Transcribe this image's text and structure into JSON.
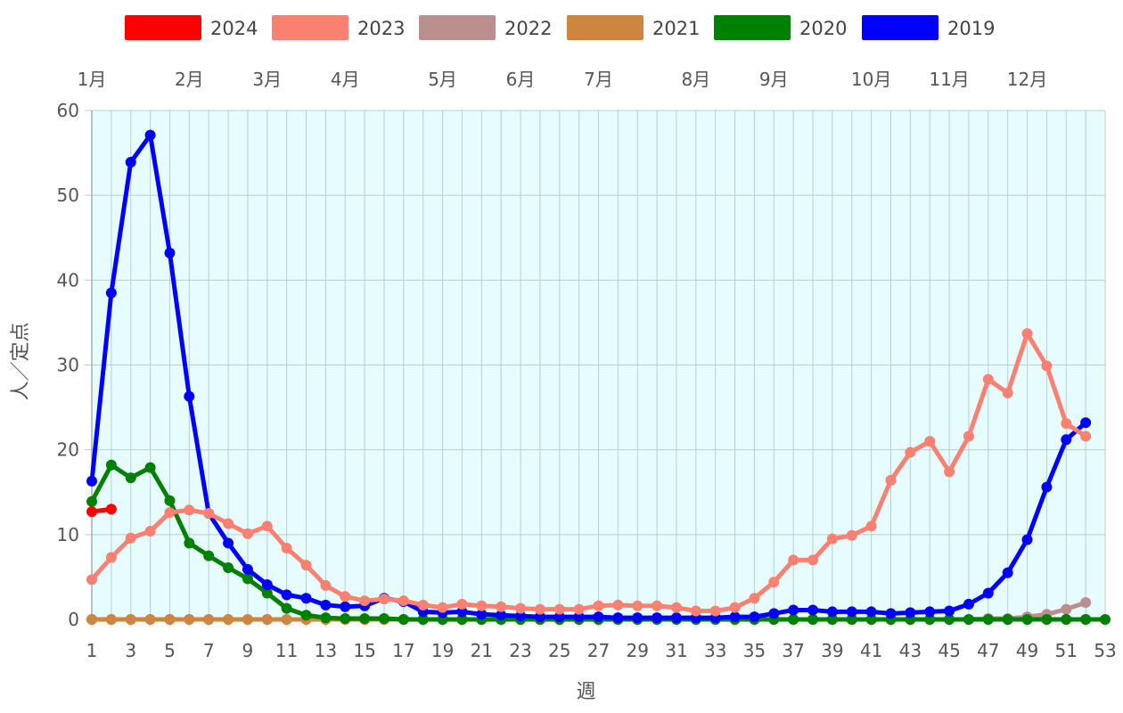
{
  "chart_data": {
    "type": "line",
    "xlabel": "週",
    "ylabel": "人／定点",
    "xlim": [
      1,
      53
    ],
    "ylim": [
      0,
      60
    ],
    "x_ticks": [
      1,
      3,
      5,
      7,
      9,
      11,
      13,
      15,
      17,
      19,
      21,
      23,
      25,
      27,
      29,
      31,
      33,
      35,
      37,
      39,
      41,
      43,
      45,
      47,
      49,
      51,
      53
    ],
    "y_ticks": [
      0,
      10,
      20,
      30,
      40,
      50,
      60
    ],
    "grid": true,
    "plot_background": "#e6fcff",
    "legend_position": "top",
    "month_labels": [
      {
        "label": "1月",
        "week": 1
      },
      {
        "label": "2月",
        "week": 6
      },
      {
        "label": "3月",
        "week": 10
      },
      {
        "label": "4月",
        "week": 14
      },
      {
        "label": "5月",
        "week": 19
      },
      {
        "label": "6月",
        "week": 23
      },
      {
        "label": "7月",
        "week": 27
      },
      {
        "label": "8月",
        "week": 32
      },
      {
        "label": "9月",
        "week": 36
      },
      {
        "label": "10月",
        "week": 41
      },
      {
        "label": "11月",
        "week": 45
      },
      {
        "label": "12月",
        "week": 49
      }
    ],
    "draw_order": [
      "2022",
      "2021",
      "2020",
      "2019",
      "2023",
      "2024"
    ],
    "series": [
      {
        "name": "2024",
        "color": "#ff0000",
        "start_week": 1,
        "values": [
          12.7,
          13.0
        ]
      },
      {
        "name": "2023",
        "color": "#fa8072",
        "start_week": 1,
        "values": [
          4.7,
          7.3,
          9.6,
          10.4,
          12.6,
          12.9,
          12.5,
          11.3,
          10.1,
          11.0,
          8.4,
          6.4,
          4.0,
          2.7,
          2.2,
          2.4,
          2.2,
          1.7,
          1.4,
          1.8,
          1.6,
          1.5,
          1.3,
          1.2,
          1.2,
          1.2,
          1.6,
          1.7,
          1.6,
          1.6,
          1.4,
          1.0,
          1.0,
          1.4,
          2.5,
          4.4,
          7.0,
          7.0,
          9.5,
          9.9,
          11.0,
          16.4,
          19.7,
          21.0,
          17.4,
          21.6,
          28.3,
          26.7,
          33.7,
          29.9,
          23.1,
          21.6
        ]
      },
      {
        "name": "2022",
        "color": "#bc8f8f",
        "start_week": 1,
        "values": [
          0,
          0,
          0,
          0,
          0,
          0,
          0,
          0,
          0,
          0,
          0,
          0,
          0,
          0,
          0,
          0,
          0,
          0,
          0,
          0,
          0,
          0,
          0,
          0,
          0,
          0,
          0,
          0,
          0,
          0,
          0,
          0,
          0,
          0,
          0,
          0,
          0,
          0,
          0,
          0,
          0,
          0,
          0,
          0,
          0,
          0,
          0.1,
          0.1,
          0.3,
          0.6,
          1.2,
          2.0
        ]
      },
      {
        "name": "2021",
        "color": "#cd853f",
        "start_week": 1,
        "values": [
          0,
          0,
          0,
          0,
          0,
          0,
          0,
          0,
          0,
          0,
          0,
          0,
          0,
          0,
          0,
          0,
          0,
          0,
          0,
          0,
          0,
          0,
          0,
          0,
          0,
          0,
          0,
          0,
          0,
          0,
          0,
          0,
          0,
          0,
          0,
          0,
          0,
          0,
          0,
          0,
          0,
          0,
          0,
          0,
          0,
          0,
          0,
          0,
          0,
          0,
          0,
          0
        ]
      },
      {
        "name": "2020",
        "color": "#008000",
        "start_week": 1,
        "values": [
          13.9,
          18.2,
          16.7,
          17.9,
          14.0,
          9.0,
          7.5,
          6.1,
          4.8,
          3.1,
          1.3,
          0.5,
          0.2,
          0.1,
          0.1,
          0.1,
          0,
          0,
          0,
          0,
          0,
          0,
          0,
          0,
          0,
          0,
          0,
          0,
          0,
          0,
          0,
          0,
          0,
          0,
          0,
          0,
          0,
          0,
          0,
          0,
          0,
          0,
          0,
          0,
          0,
          0,
          0,
          0,
          0,
          0,
          0,
          0,
          0
        ]
      },
      {
        "name": "2019",
        "color": "#0000ff",
        "start_week": 1,
        "values": [
          16.3,
          38.5,
          53.9,
          57.1,
          43.2,
          26.3,
          12.5,
          9.0,
          5.9,
          4.1,
          2.9,
          2.5,
          1.7,
          1.5,
          1.6,
          2.5,
          2.1,
          0.9,
          0.8,
          0.9,
          0.6,
          0.5,
          0.4,
          0.3,
          0.3,
          0.3,
          0.3,
          0.2,
          0.2,
          0.2,
          0.2,
          0.2,
          0.2,
          0.3,
          0.3,
          0.7,
          1.1,
          1.1,
          0.9,
          0.9,
          0.9,
          0.7,
          0.8,
          0.9,
          1.0,
          1.8,
          3.1,
          5.5,
          9.4,
          15.6,
          21.2,
          23.2
        ]
      }
    ]
  }
}
